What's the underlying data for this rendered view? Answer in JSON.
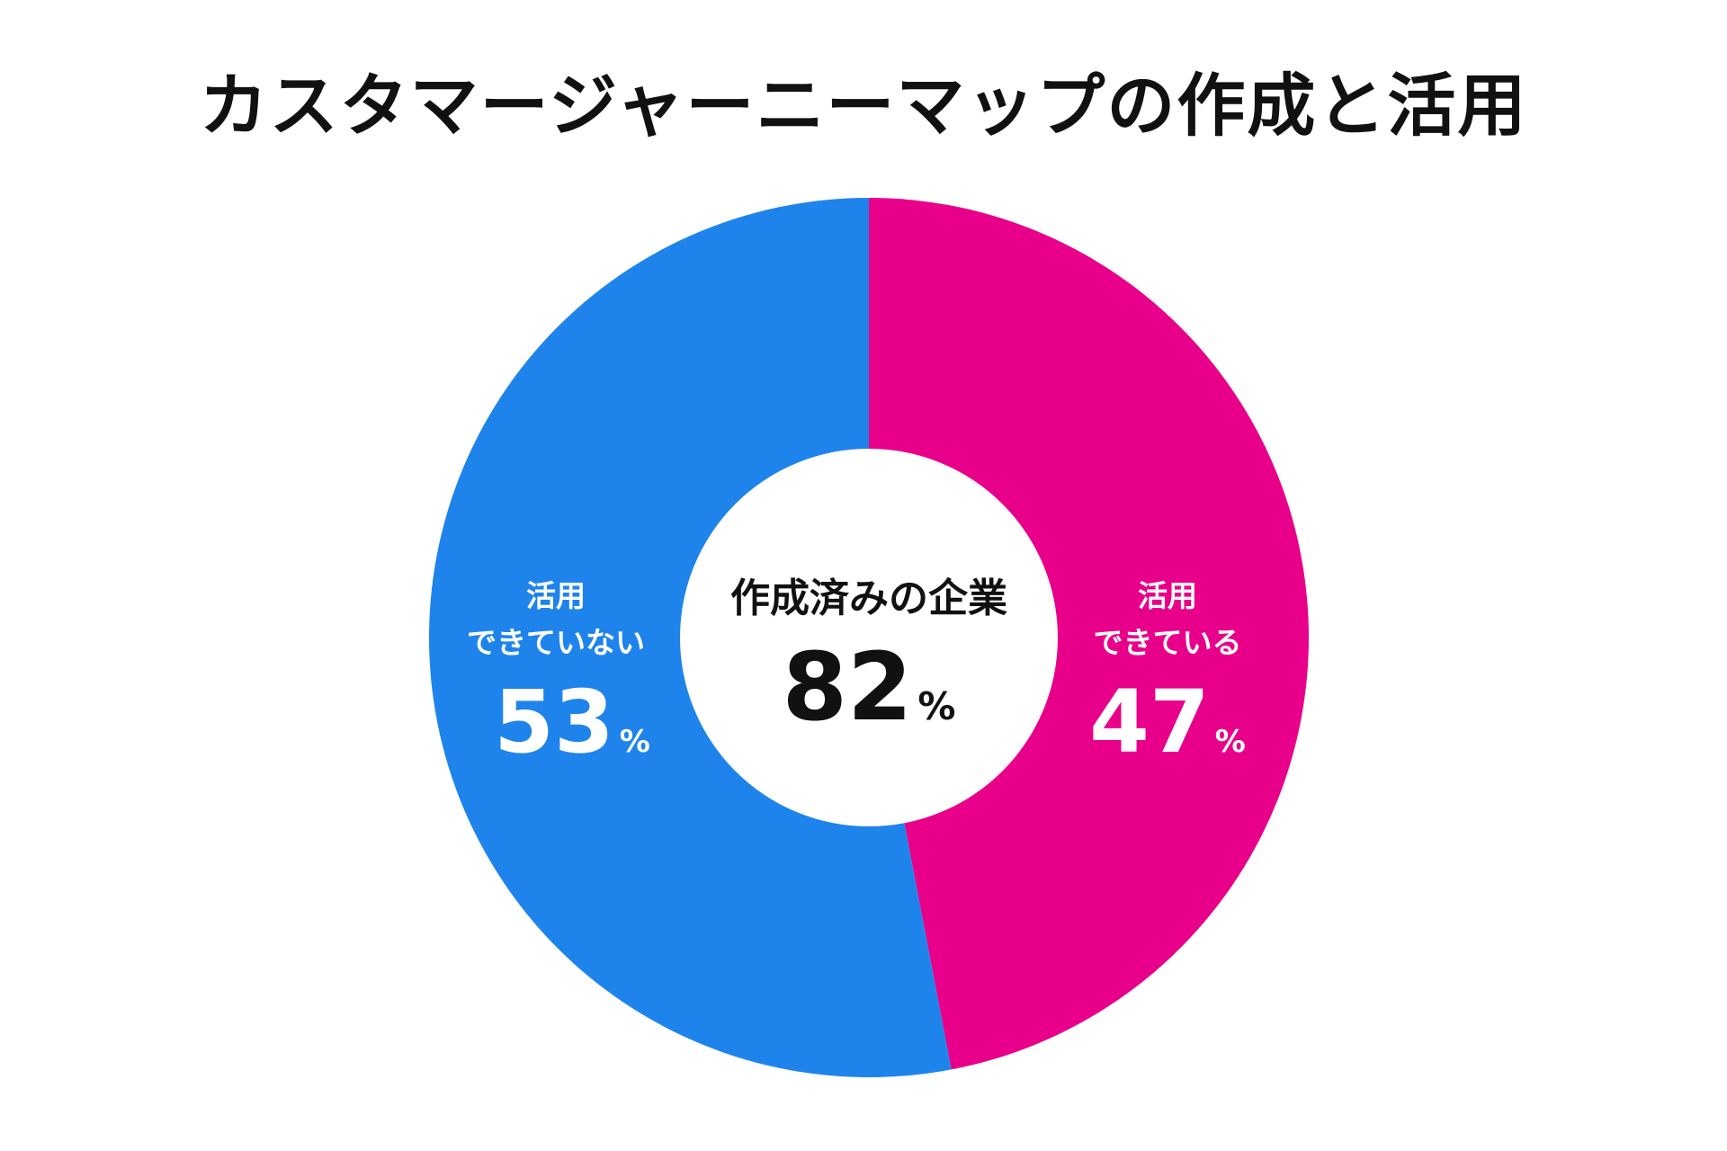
{
  "chart_data": {
    "type": "pie",
    "title": "カスタマージャーニーマップの作成と活用",
    "categories": [
      "活用できている",
      "活用できていない"
    ],
    "values": [
      47,
      53
    ],
    "colors": [
      "#E8008A",
      "#1E84EC"
    ],
    "labels": [
      {
        "line1": "活用",
        "line2": "できている",
        "value": "47",
        "unit": "%"
      },
      {
        "line1": "活用",
        "line2": "できていない",
        "value": "53",
        "unit": "%"
      }
    ],
    "center": {
      "label": "作成済みの企業",
      "value": "82",
      "unit": "%"
    }
  }
}
